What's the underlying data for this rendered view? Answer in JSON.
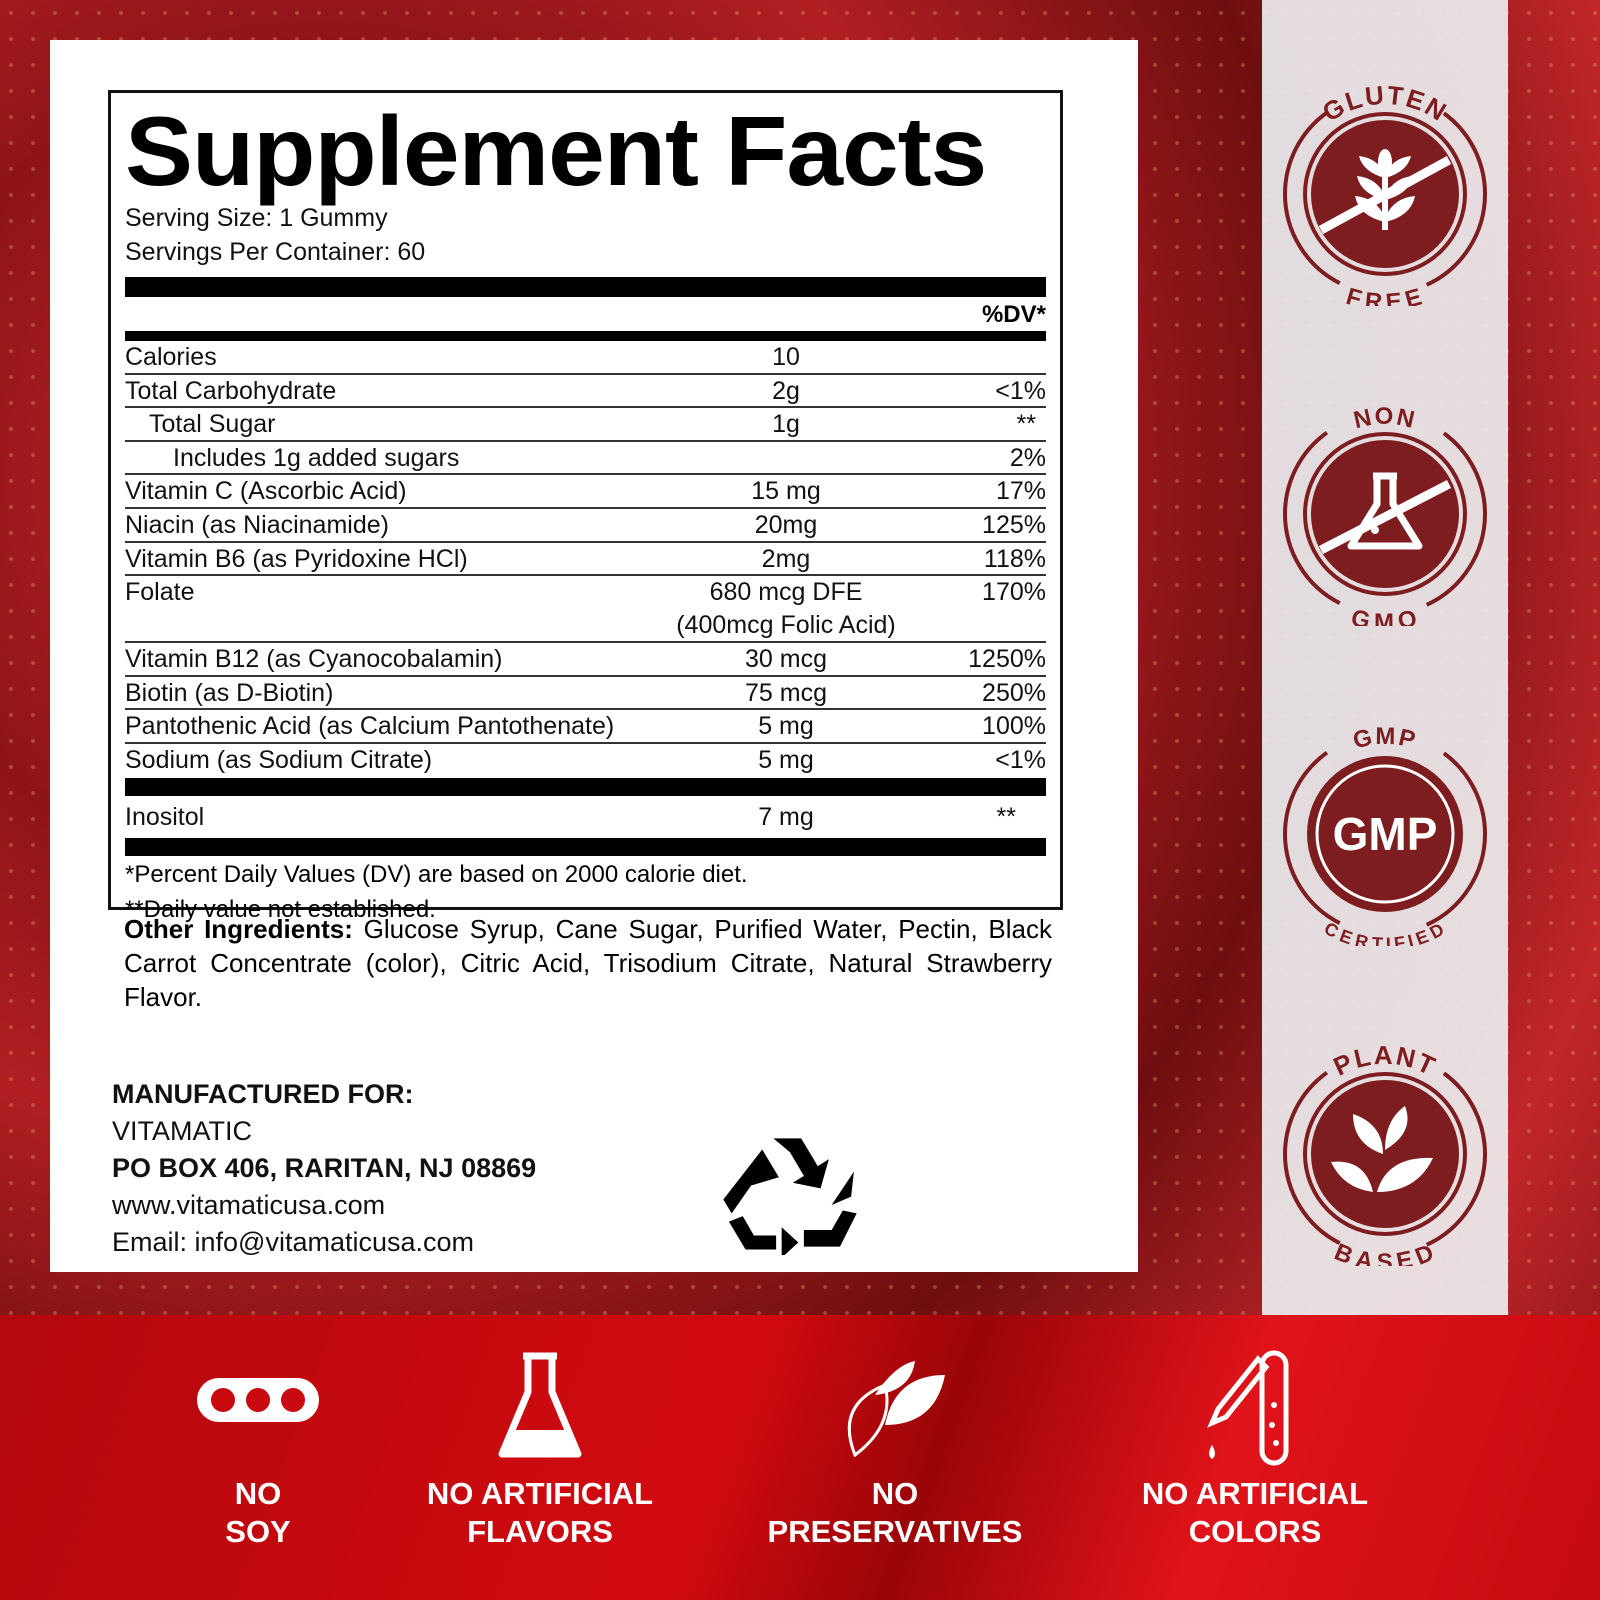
{
  "facts": {
    "title": "Supplement Facts",
    "serving_size": "Serving Size: 1 Gummy",
    "servings_per_container": "Servings Per Container: 60",
    "dv_header": "%DV*",
    "rows": [
      {
        "name": "Calories",
        "amount": "10",
        "dv": ""
      },
      {
        "name": "Total Carbohydrate",
        "amount": "2g",
        "dv": "<1%"
      },
      {
        "name": "Total Sugar",
        "amount": "1g",
        "dv": "**"
      },
      {
        "name": "Includes 1g added sugars",
        "amount": "",
        "dv": "2%"
      },
      {
        "name": "Vitamin C (Ascorbic Acid)",
        "amount": "15 mg",
        "dv": "17%"
      },
      {
        "name": "Niacin (as Niacinamide)",
        "amount": "20mg",
        "dv": "125%"
      },
      {
        "name": "Vitamin B6 (as Pyridoxine HCl)",
        "amount": "2mg",
        "dv": "118%"
      },
      {
        "name": "Folate",
        "amount": "680 mcg DFE",
        "amount2": "(400mcg Folic Acid)",
        "dv": "170%"
      },
      {
        "name": "Vitamin B12 (as Cyanocobalamin)",
        "amount": "30 mcg",
        "dv": "1250%"
      },
      {
        "name": "Biotin (as D-Biotin)",
        "amount": "75 mcg",
        "dv": "250%"
      },
      {
        "name": "Pantothenic Acid (as Calcium Pantothenate)",
        "amount": "5 mg",
        "dv": "100%"
      },
      {
        "name": "Sodium (as Sodium Citrate)",
        "amount": "5 mg",
        "dv": "<1%"
      }
    ],
    "extra_row": {
      "name": "Inositol",
      "amount": "7 mg",
      "dv": "**"
    },
    "footnote1": "*Percent Daily Values (DV) are based on 2000 calorie diet.",
    "footnote2": "**Daily value not established."
  },
  "other_ingredients": {
    "label": "Other Ingredients:",
    "text": " Glucose Syrup, Cane Sugar, Purified Water, Pectin, Black Carrot Concentrate (color), Citric Acid, Trisodium Citrate, Natural Strawberry Flavor."
  },
  "manufacturer": {
    "label": "MANUFACTURED FOR:",
    "name": "VITAMATIC",
    "address": "PO BOX 406, RARITAN, NJ 08869",
    "website": "www.vitamaticusa.com",
    "email": "Email: info@vitamaticusa.com"
  },
  "badges": [
    {
      "top": "GLUTEN",
      "bottom": "FREE",
      "icon": "wheat-crossed-icon"
    },
    {
      "top": "NON",
      "bottom": "GMO",
      "icon": "flask-crossed-icon"
    },
    {
      "top": "GMP",
      "bottom": "CERTIFIED",
      "center": "GMP",
      "icon": "gmp-icon"
    },
    {
      "top": "PLANT",
      "bottom": "BASED",
      "icon": "leaves-icon"
    }
  ],
  "features": [
    {
      "line1": "NO",
      "line2": "SOY",
      "icon": "soybean-icon"
    },
    {
      "line1": "NO ARTIFICIAL",
      "line2": "FLAVORS",
      "icon": "flask-icon"
    },
    {
      "line1": "NO",
      "line2": "PRESERVATIVES",
      "icon": "leaf-icon"
    },
    {
      "line1": "NO ARTIFICIAL",
      "line2": "COLORS",
      "icon": "dropper-icon"
    }
  ],
  "colors": {
    "badge": "#7d1d1f",
    "band": "#c90a10"
  }
}
